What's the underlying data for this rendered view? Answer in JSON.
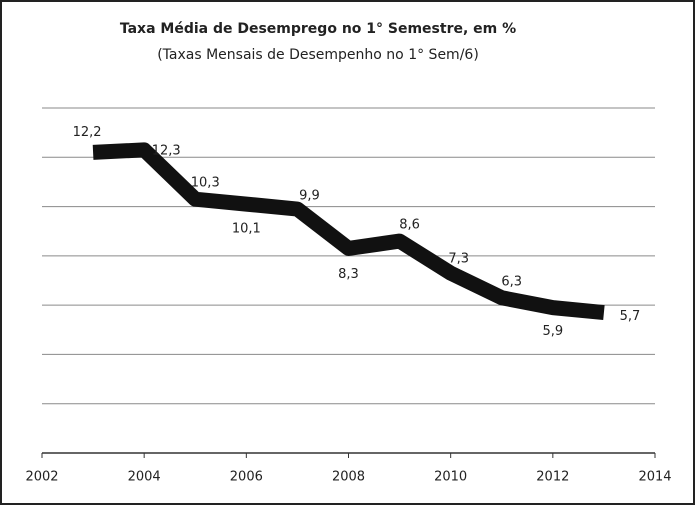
{
  "chart_data": {
    "type": "line",
    "title": "Taxa Média de Desemprego no 1° Semestre, em %",
    "subtitle": "(Taxas Mensais de Desempenho no 1° Sem/6)",
    "x": [
      2003,
      2004,
      2005,
      2006,
      2007,
      2008,
      2009,
      2010,
      2011,
      2012,
      2013
    ],
    "series": [
      {
        "color": "#111111",
        "values": [
          12.2,
          12.3,
          10.3,
          10.1,
          9.9,
          8.3,
          8.6,
          7.3,
          6.3,
          5.9,
          5.7
        ],
        "value_labels": [
          "12,2",
          "12,3",
          "10,3",
          "10,1",
          "9,9",
          "8,3",
          "8,6",
          "7,3",
          "6,3",
          "5,9",
          "5,7"
        ]
      }
    ],
    "xlim": [
      2002,
      2014
    ],
    "xticks": [
      2002,
      2004,
      2006,
      2008,
      2010,
      2012,
      2014
    ],
    "ylim": [
      0,
      14
    ],
    "yticks": [
      2,
      4,
      6,
      8,
      10,
      12,
      14
    ],
    "grid": true
  }
}
